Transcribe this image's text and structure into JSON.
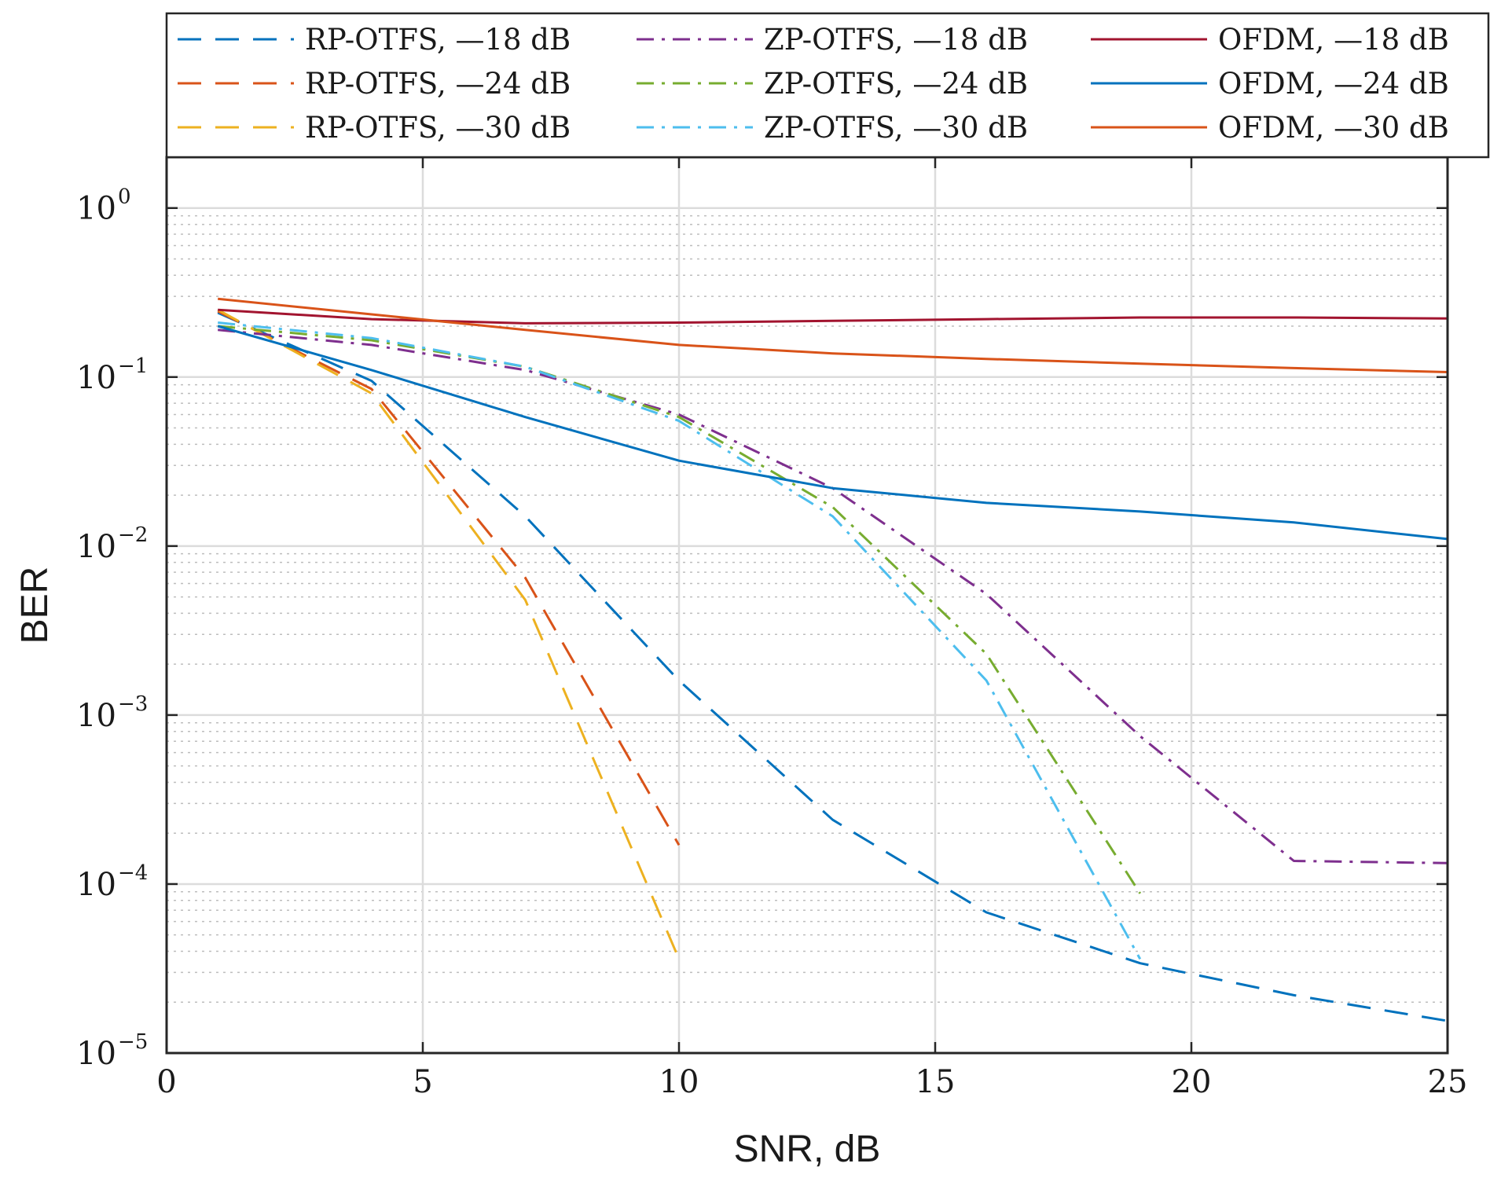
{
  "chart_data": {
    "type": "line",
    "yscale": "log",
    "xlabel": "SNR, dB",
    "ylabel": "BER",
    "xlim": [
      0,
      25
    ],
    "ylim": [
      1e-05,
      2
    ],
    "grid": true,
    "legend_position": "top",
    "x_ticks": [
      {
        "value": 0,
        "label": "0"
      },
      {
        "value": 5,
        "label": "5"
      },
      {
        "value": 10,
        "label": "10"
      },
      {
        "value": 15,
        "label": "15"
      },
      {
        "value": 20,
        "label": "20"
      },
      {
        "value": 25,
        "label": "25"
      }
    ],
    "y_ticks": [
      {
        "value": 1,
        "base": "10",
        "exp": "0"
      },
      {
        "value": 0.1,
        "base": "10",
        "exp": "−1"
      },
      {
        "value": 0.01,
        "base": "10",
        "exp": "−2"
      },
      {
        "value": 0.001,
        "base": "10",
        "exp": "−3"
      },
      {
        "value": 0.0001,
        "base": "10",
        "exp": "−4"
      },
      {
        "value": 1e-05,
        "base": "10",
        "exp": "−5"
      }
    ],
    "series": [
      {
        "name": "RP-OTFS, —18 dB",
        "color": "#0072BD",
        "style": "dashed",
        "x": [
          1,
          4,
          7,
          10,
          13,
          16,
          19,
          22,
          25
        ],
        "y": [
          0.24,
          0.095,
          0.015,
          0.0016,
          0.00024,
          6.8e-05,
          3.4e-05,
          2.2e-05,
          1.55e-05
        ]
      },
      {
        "name": "RP-OTFS, —24 dB",
        "color": "#D95319",
        "style": "dashed",
        "x": [
          1,
          4,
          7,
          10
        ],
        "y": [
          0.245,
          0.085,
          0.0065,
          0.00017
        ]
      },
      {
        "name": "RP-OTFS, —30 dB",
        "color": "#EDB120",
        "style": "dashed",
        "x": [
          1,
          4,
          7,
          10
        ],
        "y": [
          0.25,
          0.08,
          0.0048,
          3.6e-05
        ]
      },
      {
        "name": "ZP-OTFS, —18 dB",
        "color": "#7E2F8E",
        "style": "dashdot",
        "x": [
          1,
          4,
          7,
          10,
          13,
          16,
          19,
          22,
          25
        ],
        "y": [
          0.19,
          0.155,
          0.11,
          0.06,
          0.022,
          0.0052,
          0.00075,
          0.000137,
          0.000133
        ]
      },
      {
        "name": "ZP-OTFS, —24 dB",
        "color": "#77AC30",
        "style": "dashdot",
        "x": [
          1,
          4,
          7,
          10,
          13,
          16,
          19
        ],
        "y": [
          0.2,
          0.165,
          0.115,
          0.058,
          0.017,
          0.0023,
          8.8e-05
        ]
      },
      {
        "name": "ZP-OTFS, —30 dB",
        "color": "#4DBEEE",
        "style": "dashdot",
        "x": [
          1,
          4,
          7,
          10,
          13,
          16,
          19
        ],
        "y": [
          0.21,
          0.17,
          0.115,
          0.055,
          0.015,
          0.0016,
          3.6e-05
        ]
      },
      {
        "name": "OFDM, —18 dB",
        "color": "#A2142F",
        "style": "solid",
        "x": [
          1,
          4,
          7,
          10,
          13,
          16,
          19,
          22,
          25
        ],
        "y": [
          0.25,
          0.22,
          0.208,
          0.21,
          0.215,
          0.22,
          0.225,
          0.225,
          0.222
        ]
      },
      {
        "name": "OFDM, —24 dB",
        "color": "#0072BD",
        "style": "solid",
        "x": [
          1,
          4,
          7,
          10,
          13,
          16,
          19,
          22,
          25
        ],
        "y": [
          0.2,
          0.11,
          0.058,
          0.032,
          0.022,
          0.018,
          0.016,
          0.0138,
          0.011
        ]
      },
      {
        "name": "OFDM, —30 dB",
        "color": "#D95319",
        "style": "solid",
        "x": [
          1,
          4,
          7,
          10,
          13,
          16,
          19,
          22,
          25
        ],
        "y": [
          0.29,
          0.235,
          0.19,
          0.155,
          0.138,
          0.128,
          0.12,
          0.113,
          0.107
        ]
      }
    ]
  }
}
